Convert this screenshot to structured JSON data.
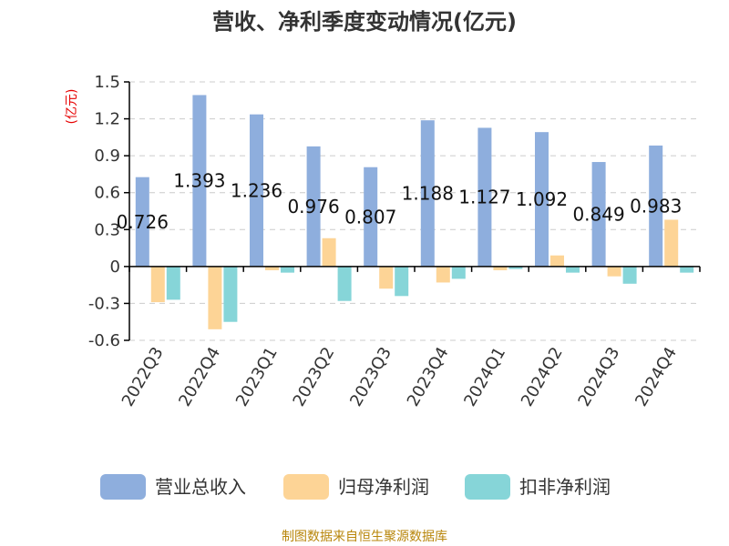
{
  "chart_data": {
    "type": "bar",
    "title": "营收、净利季度变动情况(亿元)",
    "unit_label": "(亿元)",
    "categories": [
      "2022Q3",
      "2022Q4",
      "2023Q1",
      "2023Q2",
      "2023Q3",
      "2023Q4",
      "2024Q1",
      "2024Q2",
      "2024Q3",
      "2024Q4"
    ],
    "series": [
      {
        "name": "营业总收入",
        "color": "#8eaedd",
        "values": [
          0.726,
          1.393,
          1.236,
          0.976,
          0.807,
          1.188,
          1.127,
          1.092,
          0.849,
          0.983
        ],
        "data_labels": [
          "0.726",
          "1.393",
          "1.236",
          "0.976",
          "0.807",
          "1.188",
          "1.127",
          "1.092",
          "0.849",
          "0.983"
        ]
      },
      {
        "name": "归母净利润",
        "color": "#fdd496",
        "values": [
          -0.29,
          -0.51,
          -0.03,
          0.23,
          -0.18,
          -0.13,
          -0.03,
          0.09,
          -0.08,
          0.38
        ]
      },
      {
        "name": "扣非净利润",
        "color": "#86d5d8",
        "values": [
          -0.27,
          -0.45,
          -0.05,
          -0.28,
          -0.24,
          -0.1,
          -0.02,
          -0.05,
          -0.14,
          -0.05
        ]
      }
    ],
    "y_ticks": [
      "1.5",
      "1.2",
      "0.9",
      "0.6",
      "0.3",
      "0",
      "-0.3",
      "-0.6"
    ],
    "y_tick_values": [
      1.5,
      1.2,
      0.9,
      0.6,
      0.3,
      0,
      -0.3,
      -0.6
    ],
    "ylim": [
      -0.6,
      1.5
    ],
    "grid": true,
    "legend_position": "bottom"
  },
  "source_text": "制图数据来自恒生聚源数据库"
}
